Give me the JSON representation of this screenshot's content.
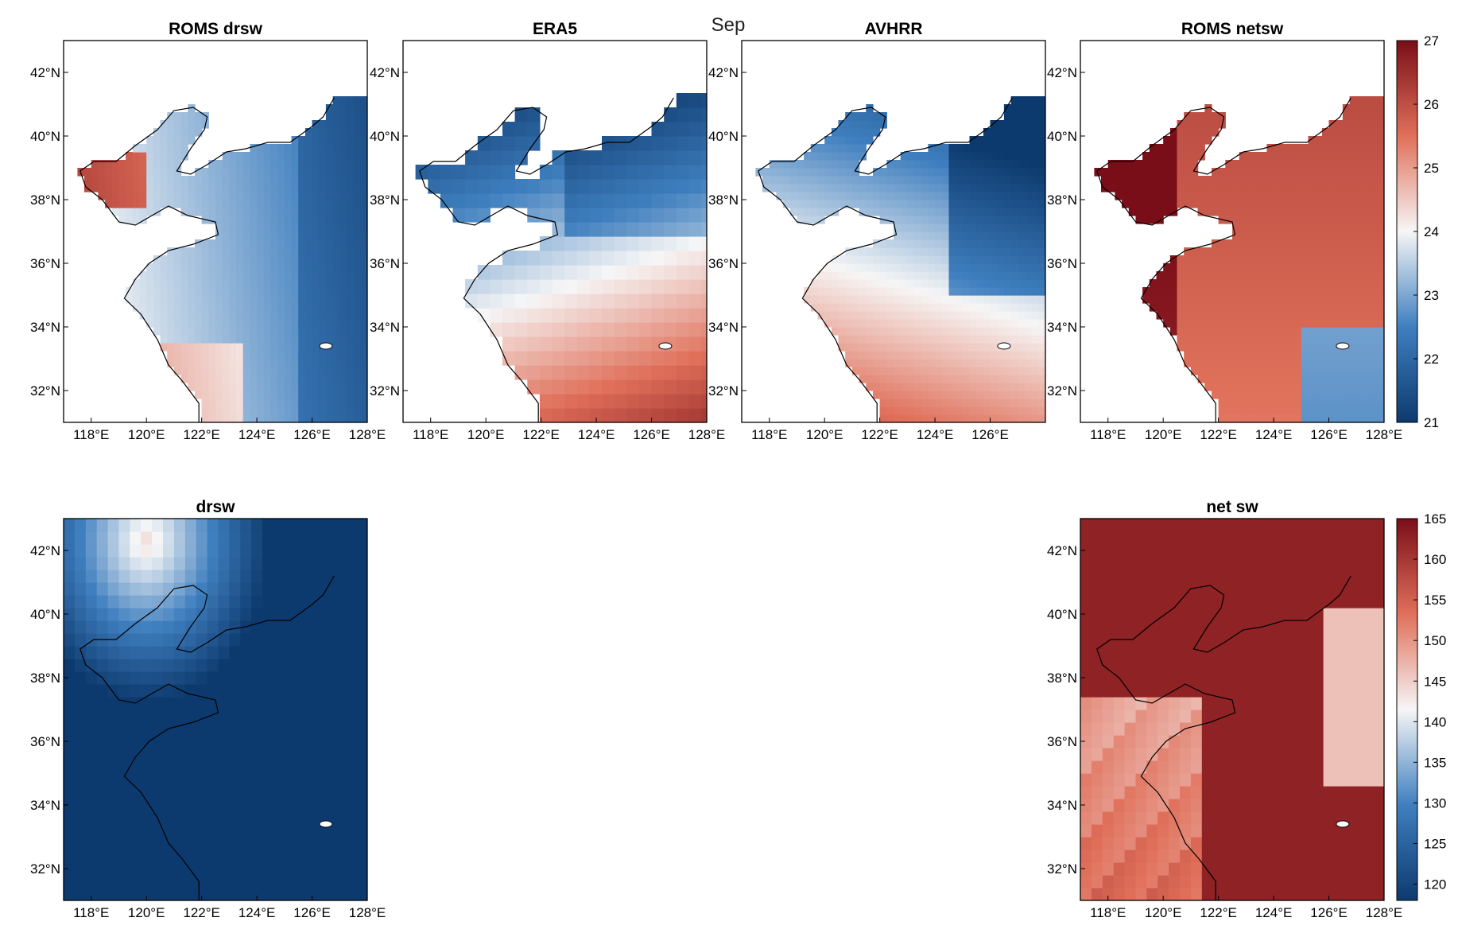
{
  "figure": {
    "suptitle": "Sep",
    "colors": {
      "blue_dark": "#0d3a6e",
      "blue_mid": "#3f7fbf",
      "white": "#f6f6f6",
      "red_mid": "#e0705a",
      "red_dark": "#7a0e18",
      "land": "#ffffff",
      "coast": "#000000"
    }
  },
  "chart_data": [
    {
      "type": "heatmap",
      "title": "ROMS drsw",
      "xlabel": "",
      "ylabel": "",
      "xlim": [
        117,
        128
      ],
      "ylim": [
        31,
        43
      ],
      "xticks": [
        "118°E",
        "120°E",
        "122°E",
        "124°E",
        "126°E",
        "128°E"
      ],
      "yticks": [
        "32°N",
        "34°N",
        "36°N",
        "38°N",
        "40°N",
        "42°N"
      ],
      "clim": [
        21,
        27
      ],
      "field": "sea-only, mostly blue 22.5-24 with dark blue toward east and red patches on west Bohai coast",
      "grid": false
    },
    {
      "type": "heatmap",
      "title": "ERA5",
      "xlabel": "",
      "ylabel": "",
      "xlim": [
        117,
        128
      ],
      "ylim": [
        31,
        43
      ],
      "xticks": [
        "118°E",
        "120°E",
        "122°E",
        "124°E",
        "126°E",
        "128°E"
      ],
      "yticks": [
        "32°N",
        "34°N",
        "36°N",
        "38°N",
        "40°N",
        "42°N"
      ],
      "clim": [
        21,
        27
      ],
      "field": "coarse blocks, blue in north 22-24, warming to 26-27 in south-east",
      "grid": false
    },
    {
      "type": "heatmap",
      "title": "AVHRR",
      "xlabel": "",
      "ylabel": "",
      "xlim": [
        117,
        128
      ],
      "ylim": [
        31,
        43
      ],
      "xticks": [
        "118°E",
        "120°E",
        "122°E",
        "124°E",
        "126°E"
      ],
      "yticks": [
        "32°N",
        "34°N",
        "36°N",
        "38°N",
        "40°N",
        "42°N"
      ],
      "clim": [
        21,
        27
      ],
      "field": "blue 22-24 in north and east coast, red 25-26.5 in south",
      "grid": false
    },
    {
      "type": "heatmap",
      "title": "ROMS netsw",
      "xlabel": "",
      "ylabel": "",
      "xlim": [
        117,
        128
      ],
      "ylim": [
        31,
        43
      ],
      "xticks": [
        "118°E",
        "120°E",
        "122°E",
        "124°E",
        "126°E",
        "128°E"
      ],
      "yticks": [
        "32°N",
        "34°N",
        "36°N",
        "38°N",
        "40°N",
        "42°N"
      ],
      "clim": [
        21,
        27
      ],
      "colorbar_ticks": [
        21,
        22,
        23,
        24,
        25,
        26,
        27
      ],
      "field": "mostly red 25-27, dark red along coasts, blue patch in south-east",
      "grid": false
    },
    {
      "type": "heatmap",
      "title": "drsw",
      "xlabel": "",
      "ylabel": "",
      "xlim": [
        117,
        128
      ],
      "ylim": [
        31,
        43
      ],
      "xticks": [
        "118°E",
        "120°E",
        "122°E",
        "124°E",
        "126°E",
        "128°E"
      ],
      "yticks": [
        "32°N",
        "34°N",
        "36°N",
        "38°N",
        "40°N",
        "42°N"
      ],
      "clim": [
        118,
        165
      ],
      "field": "full domain, light around 40-43N 118-122E, dark blue elsewhere",
      "grid": false
    },
    {
      "type": "heatmap",
      "title": "net sw",
      "xlabel": "",
      "ylabel": "",
      "xlim": [
        117,
        128
      ],
      "ylim": [
        31,
        43
      ],
      "xticks": [
        "118°E",
        "120°E",
        "122°E",
        "124°E",
        "126°E",
        "128°E"
      ],
      "yticks": [
        "32°N",
        "34°N",
        "36°N",
        "38°N",
        "40°N",
        "42°N"
      ],
      "clim": [
        118,
        165
      ],
      "colorbar_ticks": [
        120,
        125,
        130,
        135,
        140,
        145,
        150,
        155,
        160,
        165
      ],
      "field": "full domain, dark red over sea and most land, lighter 140-150 in west and east",
      "grid": false
    }
  ]
}
